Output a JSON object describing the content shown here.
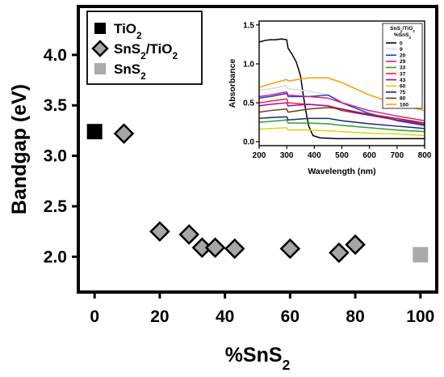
{
  "colors": {
    "tio2": "#000000",
    "composite_fill": "#a6a6a6",
    "composite_edge": "#000000",
    "sns2": "#aaaaaa"
  },
  "chart_data": [
    {
      "type": "scatter",
      "xlabel": "%SnS2",
      "ylabel": "Bandgap (eV)",
      "xlim": [
        -5,
        105
      ],
      "ylim": [
        1.65,
        4.48
      ],
      "xticks": [
        "0",
        "20",
        "40",
        "60",
        "80",
        "100"
      ],
      "yticks": [
        "2.0",
        "2.5",
        "3.0",
        "3.5",
        "4.0"
      ],
      "legend_position": "top-left",
      "series": [
        {
          "name": "TiO2",
          "marker": "square",
          "x": [
            0
          ],
          "y": [
            3.24
          ]
        },
        {
          "name": "SnS2/TiO2",
          "marker": "diamond",
          "x": [
            9,
            20,
            29,
            33,
            37,
            43,
            60,
            75,
            80
          ],
          "y": [
            3.22,
            2.25,
            2.22,
            2.09,
            2.09,
            2.08,
            2.08,
            2.04,
            2.12
          ]
        },
        {
          "name": "SnS2",
          "marker": "square",
          "x": [
            100
          ],
          "y": [
            2.02
          ]
        }
      ]
    },
    {
      "type": "line",
      "xlabel": "Wavelength (nm)",
      "ylabel": "Absorbance",
      "xlim": [
        200,
        800
      ],
      "ylim": [
        -0.05,
        1.55
      ],
      "xticks": [
        "200",
        "300",
        "400",
        "500",
        "600",
        "700",
        "800"
      ],
      "yticks": [
        "0.0",
        "0.5",
        "1.0",
        "1.5"
      ],
      "legend_title": [
        "SnS2/TiO2",
        "%SnS2"
      ],
      "legend_position": "right",
      "series": [
        {
          "name": "0",
          "color": "#000000",
          "x": [
            200,
            220,
            240,
            260,
            280,
            300,
            305,
            320,
            335,
            350,
            360,
            370,
            380,
            395,
            420,
            480,
            600,
            800
          ],
          "y": [
            1.28,
            1.3,
            1.31,
            1.31,
            1.32,
            1.31,
            1.2,
            1.12,
            1.02,
            0.85,
            0.6,
            0.38,
            0.2,
            0.08,
            0.05,
            0.04,
            0.04,
            0.04
          ]
        },
        {
          "name": "9",
          "color": "#d9d9d9",
          "x": [
            200,
            240,
            300,
            305,
            380,
            450,
            500,
            600,
            700,
            800
          ],
          "y": [
            0.66,
            0.68,
            0.72,
            0.68,
            0.65,
            0.6,
            0.52,
            0.38,
            0.28,
            0.2
          ]
        },
        {
          "name": "20",
          "color": "#1f3fd6",
          "x": [
            200,
            240,
            300,
            305,
            380,
            450,
            500,
            600,
            700,
            800
          ],
          "y": [
            0.56,
            0.58,
            0.62,
            0.58,
            0.58,
            0.6,
            0.5,
            0.36,
            0.27,
            0.21
          ]
        },
        {
          "name": "29",
          "color": "#e0198a",
          "x": [
            200,
            240,
            300,
            305,
            380,
            450,
            500,
            600,
            700,
            800
          ],
          "y": [
            0.58,
            0.6,
            0.64,
            0.6,
            0.58,
            0.56,
            0.5,
            0.4,
            0.33,
            0.27
          ]
        },
        {
          "name": "33",
          "color": "#2ca02c",
          "x": [
            200,
            240,
            300,
            305,
            380,
            450,
            500,
            600,
            700,
            800
          ],
          "y": [
            0.25,
            0.26,
            0.28,
            0.24,
            0.24,
            0.23,
            0.21,
            0.18,
            0.15,
            0.13
          ]
        },
        {
          "name": "37",
          "color": "#ff2222",
          "x": [
            200,
            240,
            300,
            305,
            380,
            450,
            500,
            600,
            700,
            800
          ],
          "y": [
            0.5,
            0.52,
            0.55,
            0.5,
            0.48,
            0.46,
            0.42,
            0.34,
            0.28,
            0.24
          ]
        },
        {
          "name": "43",
          "color": "#b000b0",
          "x": [
            200,
            240,
            300,
            305,
            380,
            450,
            500,
            600,
            700,
            800
          ],
          "y": [
            0.46,
            0.48,
            0.5,
            0.46,
            0.48,
            0.46,
            0.4,
            0.34,
            0.28,
            0.22
          ]
        },
        {
          "name": "60",
          "color": "#e6d200",
          "x": [
            200,
            240,
            300,
            305,
            380,
            450,
            500,
            600,
            700,
            800
          ],
          "y": [
            0.16,
            0.17,
            0.18,
            0.15,
            0.15,
            0.14,
            0.13,
            0.11,
            0.1,
            0.08
          ]
        },
        {
          "name": "75",
          "color": "#1a237e",
          "x": [
            200,
            240,
            300,
            305,
            380,
            450,
            500,
            600,
            700,
            800
          ],
          "y": [
            0.3,
            0.31,
            0.32,
            0.28,
            0.3,
            0.3,
            0.27,
            0.23,
            0.2,
            0.17
          ]
        },
        {
          "name": "80",
          "color": "#6d3b1a",
          "x": [
            200,
            240,
            300,
            305,
            380,
            450,
            500,
            600,
            700,
            800
          ],
          "y": [
            0.38,
            0.4,
            0.42,
            0.38,
            0.42,
            0.44,
            0.42,
            0.35,
            0.3,
            0.24
          ]
        },
        {
          "name": "100",
          "color": "#ff9900",
          "x": [
            200,
            240,
            300,
            305,
            380,
            450,
            500,
            600,
            700,
            800
          ],
          "y": [
            0.7,
            0.74,
            0.8,
            0.78,
            0.82,
            0.82,
            0.76,
            0.6,
            0.48,
            0.4
          ]
        }
      ]
    }
  ]
}
